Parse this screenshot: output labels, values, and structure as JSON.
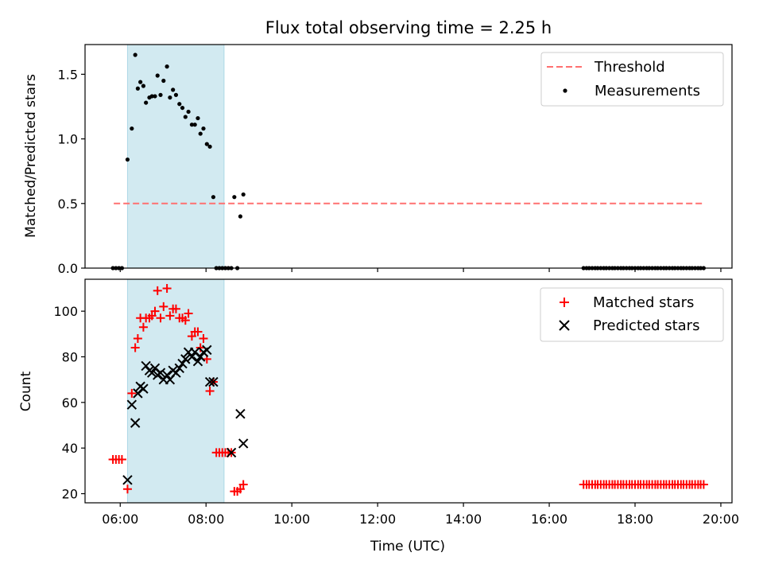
{
  "title": "Flux total observing time = 2.25 h",
  "colors": {
    "threshold": "#ff7070",
    "measurement": "#000000",
    "matched": "#ff0000",
    "predicted": "#000000",
    "shade": "#add8e6"
  },
  "chart_data": [
    {
      "type": "scatter",
      "ylabel": "Matched/Predicted stars",
      "xlim": [
        5.18,
        20.26
      ],
      "ylim": [
        0,
        1.73
      ],
      "yticks": [
        0.0,
        0.5,
        1.0,
        1.5
      ],
      "ytick_labels": [
        "0.0",
        "0.5",
        "1.0",
        "1.5"
      ],
      "shaded_interval": [
        6.17,
        8.42
      ],
      "legend": {
        "position": "upper right",
        "entries": [
          "Threshold",
          "Measurements"
        ]
      },
      "threshold": {
        "name": "Threshold",
        "y": 0.5,
        "x": [
          5.85,
          19.6
        ]
      },
      "series": [
        {
          "name": "Measurements",
          "points": [
            [
              5.83,
              0
            ],
            [
              5.9,
              0
            ],
            [
              5.97,
              0
            ],
            [
              6.04,
              0
            ],
            [
              6.17,
              0.84
            ],
            [
              6.27,
              1.08
            ],
            [
              6.35,
              1.65
            ],
            [
              6.41,
              1.39
            ],
            [
              6.47,
              1.44
            ],
            [
              6.54,
              1.41
            ],
            [
              6.6,
              1.28
            ],
            [
              6.68,
              1.32
            ],
            [
              6.74,
              1.33
            ],
            [
              6.81,
              1.33
            ],
            [
              6.87,
              1.49
            ],
            [
              6.94,
              1.34
            ],
            [
              7.01,
              1.45
            ],
            [
              7.09,
              1.56
            ],
            [
              7.16,
              1.32
            ],
            [
              7.23,
              1.38
            ],
            [
              7.3,
              1.34
            ],
            [
              7.38,
              1.27
            ],
            [
              7.45,
              1.24
            ],
            [
              7.52,
              1.17
            ],
            [
              7.59,
              1.21
            ],
            [
              7.67,
              1.11
            ],
            [
              7.74,
              1.11
            ],
            [
              7.81,
              1.16
            ],
            [
              7.87,
              1.04
            ],
            [
              7.94,
              1.08
            ],
            [
              8.02,
              0.96
            ],
            [
              8.09,
              0.94
            ],
            [
              8.17,
              0.55
            ],
            [
              8.24,
              0
            ],
            [
              8.31,
              0
            ],
            [
              8.38,
              0
            ],
            [
              8.45,
              0
            ],
            [
              8.52,
              0
            ],
            [
              8.59,
              0
            ],
            [
              8.66,
              0.55
            ],
            [
              8.73,
              0
            ],
            [
              8.8,
              0.4
            ],
            [
              8.87,
              0.57
            ],
            [
              16.8,
              0
            ],
            [
              16.87,
              0
            ],
            [
              16.93,
              0
            ],
            [
              17.0,
              0
            ],
            [
              17.07,
              0
            ],
            [
              17.13,
              0
            ],
            [
              17.2,
              0
            ],
            [
              17.27,
              0
            ],
            [
              17.33,
              0
            ],
            [
              17.4,
              0
            ],
            [
              17.47,
              0
            ],
            [
              17.53,
              0
            ],
            [
              17.6,
              0
            ],
            [
              17.67,
              0
            ],
            [
              17.73,
              0
            ],
            [
              17.8,
              0
            ],
            [
              17.87,
              0
            ],
            [
              17.93,
              0
            ],
            [
              18.0,
              0
            ],
            [
              18.07,
              0
            ],
            [
              18.13,
              0
            ],
            [
              18.2,
              0
            ],
            [
              18.27,
              0
            ],
            [
              18.33,
              0
            ],
            [
              18.4,
              0
            ],
            [
              18.47,
              0
            ],
            [
              18.53,
              0
            ],
            [
              18.6,
              0
            ],
            [
              18.67,
              0
            ],
            [
              18.73,
              0
            ],
            [
              18.8,
              0
            ],
            [
              18.87,
              0
            ],
            [
              18.93,
              0
            ],
            [
              19.0,
              0
            ],
            [
              19.07,
              0
            ],
            [
              19.13,
              0
            ],
            [
              19.2,
              0
            ],
            [
              19.27,
              0
            ],
            [
              19.33,
              0
            ],
            [
              19.4,
              0
            ],
            [
              19.47,
              0
            ],
            [
              19.53,
              0
            ],
            [
              19.6,
              0
            ]
          ]
        }
      ]
    },
    {
      "type": "scatter",
      "xlabel": "Time (UTC)",
      "ylabel": "Count",
      "xlim": [
        5.18,
        20.26
      ],
      "ylim": [
        16,
        114
      ],
      "xticks": [
        6,
        8,
        10,
        12,
        14,
        16,
        18,
        20
      ],
      "xtick_labels": [
        "06:00",
        "08:00",
        "10:00",
        "12:00",
        "14:00",
        "16:00",
        "18:00",
        "20:00"
      ],
      "yticks": [
        20,
        40,
        60,
        80,
        100
      ],
      "ytick_labels": [
        "20",
        "40",
        "60",
        "80",
        "100"
      ],
      "shaded_interval": [
        6.17,
        8.42
      ],
      "legend": {
        "position": "upper right",
        "entries": [
          "Matched stars",
          "Predicted stars"
        ]
      },
      "series": [
        {
          "name": "Matched stars",
          "marker": "+",
          "points": [
            [
              5.83,
              35
            ],
            [
              5.9,
              35
            ],
            [
              5.97,
              35
            ],
            [
              6.04,
              35
            ],
            [
              6.17,
              22
            ],
            [
              6.27,
              64
            ],
            [
              6.35,
              84
            ],
            [
              6.41,
              88
            ],
            [
              6.47,
              97
            ],
            [
              6.54,
              93
            ],
            [
              6.6,
              97
            ],
            [
              6.68,
              97
            ],
            [
              6.74,
              98
            ],
            [
              6.81,
              100
            ],
            [
              6.87,
              109
            ],
            [
              6.94,
              97
            ],
            [
              7.01,
              102
            ],
            [
              7.09,
              110
            ],
            [
              7.16,
              98
            ],
            [
              7.23,
              101
            ],
            [
              7.3,
              101
            ],
            [
              7.38,
              97
            ],
            [
              7.45,
              97
            ],
            [
              7.52,
              96
            ],
            [
              7.59,
              99
            ],
            [
              7.67,
              89
            ],
            [
              7.74,
              91
            ],
            [
              7.81,
              91
            ],
            [
              7.87,
              84
            ],
            [
              7.94,
              88
            ],
            [
              8.02,
              79
            ],
            [
              8.09,
              65
            ],
            [
              8.17,
              69
            ],
            [
              8.24,
              38
            ],
            [
              8.31,
              38
            ],
            [
              8.38,
              38
            ],
            [
              8.45,
              38
            ],
            [
              8.52,
              38
            ],
            [
              8.59,
              38
            ],
            [
              8.66,
              21
            ],
            [
              8.73,
              21
            ],
            [
              8.8,
              22
            ],
            [
              8.87,
              24
            ],
            [
              16.8,
              24
            ],
            [
              16.87,
              24
            ],
            [
              16.93,
              24
            ],
            [
              17.0,
              24
            ],
            [
              17.07,
              24
            ],
            [
              17.13,
              24
            ],
            [
              17.2,
              24
            ],
            [
              17.27,
              24
            ],
            [
              17.33,
              24
            ],
            [
              17.4,
              24
            ],
            [
              17.47,
              24
            ],
            [
              17.53,
              24
            ],
            [
              17.6,
              24
            ],
            [
              17.67,
              24
            ],
            [
              17.73,
              24
            ],
            [
              17.8,
              24
            ],
            [
              17.87,
              24
            ],
            [
              17.93,
              24
            ],
            [
              18.0,
              24
            ],
            [
              18.07,
              24
            ],
            [
              18.13,
              24
            ],
            [
              18.2,
              24
            ],
            [
              18.27,
              24
            ],
            [
              18.33,
              24
            ],
            [
              18.4,
              24
            ],
            [
              18.47,
              24
            ],
            [
              18.53,
              24
            ],
            [
              18.6,
              24
            ],
            [
              18.67,
              24
            ],
            [
              18.73,
              24
            ],
            [
              18.8,
              24
            ],
            [
              18.87,
              24
            ],
            [
              18.93,
              24
            ],
            [
              19.0,
              24
            ],
            [
              19.07,
              24
            ],
            [
              19.13,
              24
            ],
            [
              19.2,
              24
            ],
            [
              19.27,
              24
            ],
            [
              19.33,
              24
            ],
            [
              19.4,
              24
            ],
            [
              19.47,
              24
            ],
            [
              19.53,
              24
            ],
            [
              19.6,
              24
            ]
          ]
        },
        {
          "name": "Predicted stars",
          "marker": "x",
          "points": [
            [
              6.17,
              26
            ],
            [
              6.27,
              59
            ],
            [
              6.35,
              51
            ],
            [
              6.41,
              64
            ],
            [
              6.47,
              67
            ],
            [
              6.54,
              66
            ],
            [
              6.6,
              76
            ],
            [
              6.68,
              74
            ],
            [
              6.74,
              73
            ],
            [
              6.81,
              75
            ],
            [
              6.87,
              72
            ],
            [
              6.94,
              73
            ],
            [
              7.01,
              70
            ],
            [
              7.09,
              72
            ],
            [
              7.16,
              70
            ],
            [
              7.23,
              74
            ],
            [
              7.3,
              73
            ],
            [
              7.38,
              75
            ],
            [
              7.45,
              77
            ],
            [
              7.52,
              79
            ],
            [
              7.59,
              82
            ],
            [
              7.67,
              80
            ],
            [
              7.74,
              82
            ],
            [
              7.81,
              78
            ],
            [
              7.87,
              80
            ],
            [
              7.94,
              82
            ],
            [
              8.02,
              83
            ],
            [
              8.09,
              69
            ],
            [
              8.17,
              69
            ],
            [
              8.59,
              38
            ],
            [
              8.8,
              55
            ],
            [
              8.87,
              42
            ]
          ]
        }
      ]
    }
  ]
}
